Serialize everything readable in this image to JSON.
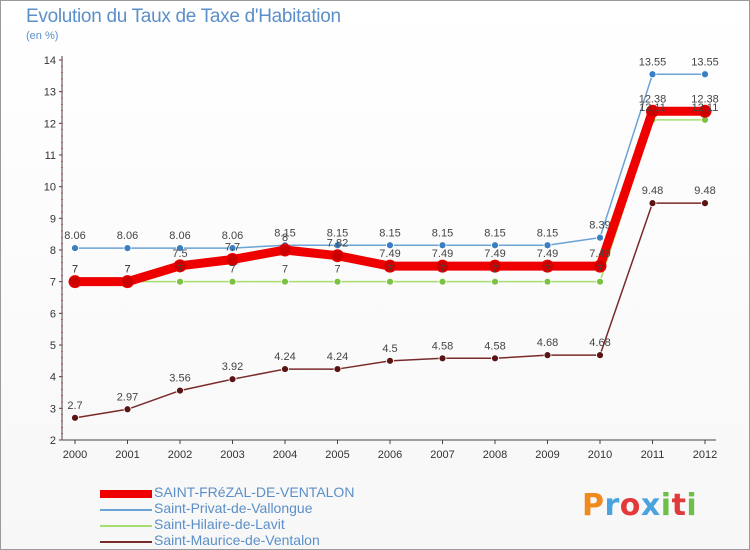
{
  "chart_data": {
    "type": "line",
    "title": "Evolution du Taux de Taxe d'Habitation",
    "subtitle": "(en %)",
    "xlabel": "",
    "ylabel": "",
    "x": [
      "2000",
      "2001",
      "2002",
      "2003",
      "2004",
      "2005",
      "2006",
      "2007",
      "2008",
      "2009",
      "2010",
      "2011",
      "2012"
    ],
    "ylim": [
      2,
      14
    ],
    "yticks": [
      2,
      3,
      4,
      5,
      6,
      7,
      8,
      9,
      10,
      11,
      12,
      13,
      14
    ],
    "grid": false,
    "legend_position": "bottom",
    "series": [
      {
        "name": "SAINT-FRéZAL-DE-VENTALON",
        "color": "#ee0000",
        "dot": "#cc0000",
        "width": 9,
        "values": [
          7,
          7,
          7.5,
          7.7,
          8,
          7.82,
          7.49,
          7.49,
          7.49,
          7.49,
          7.49,
          12.38,
          12.38
        ],
        "labels": [
          "7",
          "7",
          "7.5",
          "7.7",
          "8",
          "7.82",
          "7.49",
          "7.49",
          "7.49",
          "7.49",
          "7.49",
          "12.38",
          "12.38"
        ]
      },
      {
        "name": "Saint-Privat-de-Vallongue",
        "color": "#6aa3d6",
        "dot": "#3a7fc1",
        "width": 1.5,
        "values": [
          8.06,
          8.06,
          8.06,
          8.06,
          8.15,
          8.15,
          8.15,
          8.15,
          8.15,
          8.15,
          8.39,
          13.55,
          13.55
        ],
        "labels": [
          "8.06",
          "8.06",
          "8.06",
          "8.06",
          "8.15",
          "8.15",
          "8.15",
          "8.15",
          "8.15",
          "8.15",
          "8.39",
          "13.55",
          "13.55"
        ]
      },
      {
        "name": "Saint-Hilaire-de-Lavit",
        "color": "#a6dd6e",
        "dot": "#7cc242",
        "width": 1.5,
        "values": [
          7,
          7,
          7,
          7,
          7,
          7,
          7,
          7,
          7,
          7,
          7,
          12.11,
          12.11
        ],
        "labels": [
          "7",
          "7",
          "7",
          "7",
          "7",
          "7",
          "7",
          "7",
          "7",
          "7",
          "7",
          "12.11",
          "12.11"
        ]
      },
      {
        "name": "Saint-Maurice-de-Ventalon",
        "color": "#7a2a2a",
        "dot": "#5a1414",
        "width": 1.5,
        "values": [
          2.7,
          2.97,
          3.56,
          3.92,
          4.24,
          4.24,
          4.5,
          4.58,
          4.58,
          4.68,
          4.68,
          9.48,
          9.48
        ],
        "labels": [
          "2.7",
          "2.97",
          "3.56",
          "3.92",
          "4.24",
          "4.24",
          "4.5",
          "4.58",
          "4.58",
          "4.68",
          "4.68",
          "9.48",
          "9.48"
        ]
      }
    ]
  },
  "brand": {
    "logo_text": "Proxiti",
    "colors": [
      "#f08a1e",
      "#4aa3df",
      "#e23a3a",
      "#4aa3df",
      "#6cc04a",
      "#e23a3a",
      "#6cc04a"
    ]
  }
}
